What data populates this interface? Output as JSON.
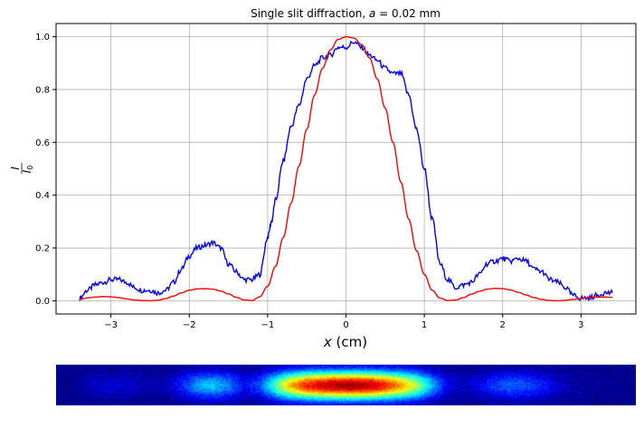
{
  "chart_data": {
    "type": "line",
    "title_prefix": "Single slit diffraction, ",
    "title_var": "a",
    "title_suffix": " = 0.02 mm",
    "xlabel_var": "x",
    "xlabel_unit": " (cm)",
    "ylabel_num": "I",
    "ylabel_den": "I",
    "ylabel_den_sub": "0",
    "xlim": [
      -3.7,
      3.7
    ],
    "ylim": [
      -0.05,
      1.05
    ],
    "xticks": [
      -3,
      -2,
      -1,
      0,
      1,
      2,
      3
    ],
    "xtick_labels": [
      "−3",
      "−2",
      "−1",
      "0",
      "1",
      "2",
      "3"
    ],
    "yticks": [
      0.0,
      0.2,
      0.4,
      0.6,
      0.8,
      1.0
    ],
    "ytick_labels": [
      "0.0",
      "0.2",
      "0.4",
      "0.6",
      "0.8",
      "1.0"
    ],
    "grid": true,
    "series": [
      {
        "color": "#0000ff",
        "x": [
          -3.4,
          -3.3,
          -3.2,
          -3.1,
          -3.0,
          -2.9,
          -2.8,
          -2.7,
          -2.6,
          -2.5,
          -2.4,
          -2.3,
          -2.2,
          -2.1,
          -2.0,
          -1.9,
          -1.8,
          -1.7,
          -1.6,
          -1.5,
          -1.4,
          -1.3,
          -1.2,
          -1.1,
          -1.0,
          -0.95,
          -0.9,
          -0.8,
          -0.7,
          -0.6,
          -0.5,
          -0.4,
          -0.3,
          -0.2,
          -0.1,
          0.0,
          0.1,
          0.2,
          0.3,
          0.4,
          0.5,
          0.6,
          0.7,
          0.8,
          0.9,
          1.0,
          1.1,
          1.2,
          1.3,
          1.4,
          1.5,
          1.6,
          1.7,
          1.8,
          1.9,
          2.0,
          2.1,
          2.2,
          2.3,
          2.4,
          2.5,
          2.6,
          2.7,
          2.8,
          2.9,
          3.0,
          3.1,
          3.2,
          3.3,
          3.4
        ],
        "y": [
          0.01,
          0.04,
          0.06,
          0.07,
          0.08,
          0.08,
          0.07,
          0.05,
          0.04,
          0.04,
          0.03,
          0.04,
          0.07,
          0.12,
          0.17,
          0.2,
          0.21,
          0.22,
          0.2,
          0.14,
          0.11,
          0.08,
          0.08,
          0.1,
          0.24,
          0.3,
          0.38,
          0.53,
          0.66,
          0.74,
          0.84,
          0.89,
          0.92,
          0.93,
          0.96,
          0.96,
          0.98,
          0.96,
          0.93,
          0.91,
          0.88,
          0.86,
          0.86,
          0.78,
          0.65,
          0.5,
          0.31,
          0.14,
          0.08,
          0.05,
          0.06,
          0.07,
          0.1,
          0.14,
          0.15,
          0.16,
          0.15,
          0.16,
          0.15,
          0.12,
          0.11,
          0.08,
          0.07,
          0.05,
          0.02,
          0.01,
          0.01,
          0.02,
          0.03,
          0.03
        ]
      },
      {
        "color": "#ff0000",
        "x": [
          -3.4,
          -3.3,
          -3.2,
          -3.1,
          -3.0,
          -2.9,
          -2.8,
          -2.7,
          -2.6,
          -2.5,
          -2.4,
          -2.3,
          -2.2,
          -2.1,
          -2.0,
          -1.9,
          -1.8,
          -1.7,
          -1.6,
          -1.5,
          -1.4,
          -1.3,
          -1.2,
          -1.1,
          -1.0,
          -0.9,
          -0.8,
          -0.7,
          -0.6,
          -0.5,
          -0.4,
          -0.3,
          -0.2,
          -0.1,
          0.0,
          0.1,
          0.2,
          0.3,
          0.4,
          0.5,
          0.6,
          0.7,
          0.8,
          0.9,
          1.0,
          1.1,
          1.2,
          1.3,
          1.4,
          1.5,
          1.6,
          1.7,
          1.8,
          1.9,
          2.0,
          2.1,
          2.2,
          2.3,
          2.4,
          2.5,
          2.6,
          2.7,
          2.8,
          2.9,
          3.0,
          3.1,
          3.2,
          3.3,
          3.4
        ],
        "y": [
          0.005,
          0.011,
          0.014,
          0.016,
          0.015,
          0.012,
          0.007,
          0.003,
          0.001,
          0.0,
          0.002,
          0.008,
          0.018,
          0.03,
          0.04,
          0.045,
          0.046,
          0.044,
          0.037,
          0.026,
          0.013,
          0.003,
          0.001,
          0.015,
          0.055,
          0.13,
          0.24,
          0.37,
          0.51,
          0.65,
          0.78,
          0.88,
          0.95,
          0.99,
          1.0,
          0.995,
          0.97,
          0.92,
          0.84,
          0.73,
          0.6,
          0.45,
          0.31,
          0.19,
          0.1,
          0.04,
          0.01,
          0.001,
          0.003,
          0.012,
          0.025,
          0.036,
          0.044,
          0.047,
          0.046,
          0.041,
          0.032,
          0.022,
          0.012,
          0.005,
          0.001,
          0.0,
          0.002,
          0.005,
          0.009,
          0.012,
          0.014,
          0.014,
          0.013
        ]
      }
    ],
    "heatmap": {
      "type": "heatmap",
      "colormap": "jet",
      "x": [
        -3.7,
        -3.5,
        -3.3,
        -3.1,
        -2.9,
        -2.7,
        -2.5,
        -2.3,
        -2.1,
        -1.9,
        -1.7,
        -1.5,
        -1.3,
        -1.1,
        -0.9,
        -0.7,
        -0.5,
        -0.3,
        -0.1,
        0.1,
        0.3,
        0.5,
        0.7,
        0.9,
        1.1,
        1.3,
        1.5,
        1.7,
        1.9,
        2.1,
        2.3,
        2.5,
        2.7,
        2.9,
        3.1,
        3.3,
        3.5,
        3.7
      ],
      "intensity": [
        0.0,
        0.0,
        0.05,
        0.08,
        0.08,
        0.06,
        0.04,
        0.05,
        0.15,
        0.28,
        0.32,
        0.25,
        0.12,
        0.2,
        0.45,
        0.7,
        0.85,
        0.92,
        0.96,
        0.97,
        0.93,
        0.85,
        0.72,
        0.55,
        0.3,
        0.1,
        0.06,
        0.1,
        0.18,
        0.22,
        0.2,
        0.15,
        0.08,
        0.04,
        0.02,
        0.02,
        0.0,
        0.0
      ]
    }
  }
}
